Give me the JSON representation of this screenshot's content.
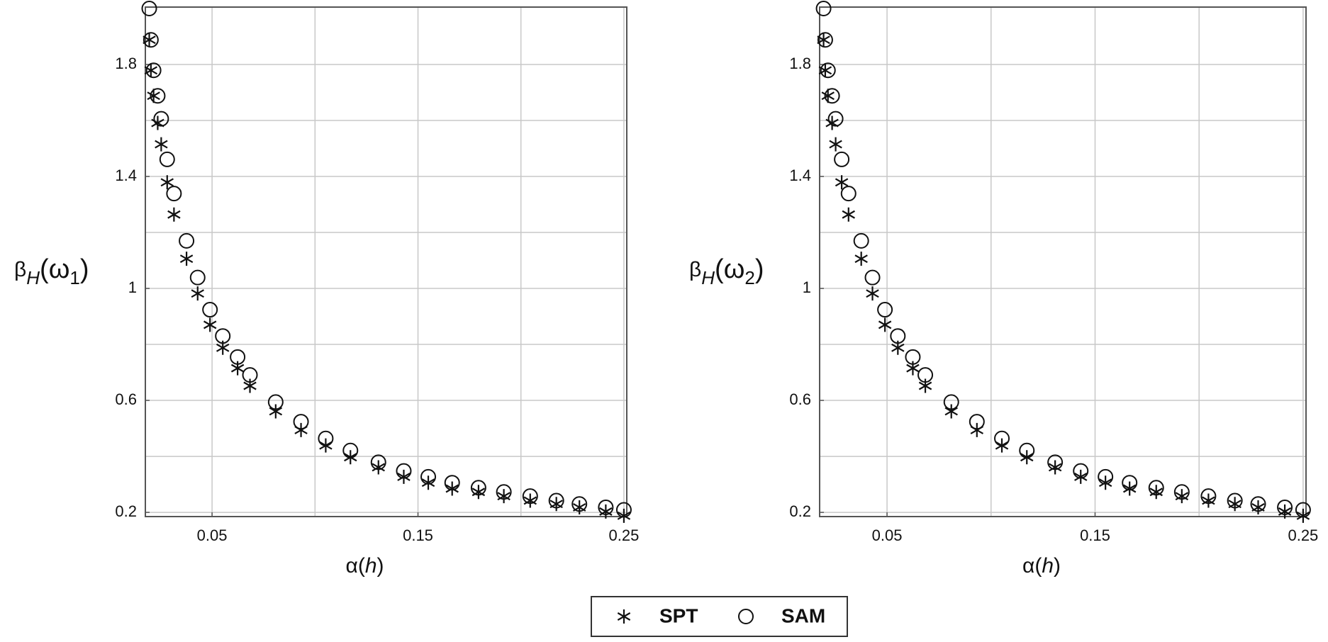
{
  "chart_data": [
    {
      "type": "scatter",
      "ylabel": [
        "β",
        "H",
        "(ω",
        "1",
        ")"
      ],
      "xlabel": [
        "α(",
        "h",
        ")"
      ],
      "x": [
        0.0195,
        0.0203,
        0.0216,
        0.0236,
        0.0253,
        0.0282,
        0.0315,
        0.0376,
        0.043,
        0.049,
        0.0552,
        0.0624,
        0.0684,
        0.0809,
        0.0932,
        0.1052,
        0.1172,
        0.1308,
        0.1431,
        0.155,
        0.1666,
        0.1794,
        0.1917,
        0.2045,
        0.2172,
        0.2284,
        0.2412,
        0.25
      ],
      "series": [
        {
          "name": "SPT",
          "marker": "star",
          "color": "#111111",
          "values": [
            1.888,
            1.779,
            1.688,
            1.591,
            1.515,
            1.379,
            1.264,
            1.106,
            0.982,
            0.87,
            0.788,
            0.715,
            0.652,
            0.561,
            0.494,
            0.439,
            0.397,
            0.361,
            0.327,
            0.306,
            0.285,
            0.273,
            0.258,
            0.242,
            0.23,
            0.218,
            0.203,
            0.188
          ]
        },
        {
          "name": "SAM",
          "marker": "circle",
          "color": "#111111",
          "values": [
            2.0,
            1.888,
            1.779,
            1.688,
            1.606,
            1.461,
            1.339,
            1.17,
            1.039,
            0.924,
            0.83,
            0.755,
            0.691,
            0.594,
            0.524,
            0.464,
            0.421,
            0.379,
            0.348,
            0.327,
            0.306,
            0.288,
            0.273,
            0.258,
            0.242,
            0.23,
            0.218,
            0.209
          ]
        }
      ],
      "xlim": [
        0.0176,
        0.2514
      ],
      "ylim": [
        0.185,
        2.005
      ],
      "xticks": [
        0.05,
        0.15,
        0.25
      ],
      "yticks": [
        0.2,
        0.6,
        1.0,
        1.4,
        1.8
      ],
      "xgrid": [
        0.05,
        0.1,
        0.15,
        0.2,
        0.25
      ],
      "ygrid": [
        0.2,
        0.4,
        0.6,
        0.8,
        1.0,
        1.2,
        1.4,
        1.6,
        1.8
      ],
      "grid": true
    },
    {
      "type": "scatter",
      "ylabel": [
        "β",
        "H",
        "(ω",
        "2",
        ")"
      ],
      "xlabel": [
        "α(",
        "h",
        ")"
      ],
      "x": [
        0.0195,
        0.0203,
        0.0216,
        0.0236,
        0.0253,
        0.0282,
        0.0315,
        0.0376,
        0.043,
        0.049,
        0.0552,
        0.0624,
        0.0684,
        0.0809,
        0.0932,
        0.1052,
        0.1172,
        0.1308,
        0.1431,
        0.155,
        0.1666,
        0.1794,
        0.1917,
        0.2045,
        0.2172,
        0.2284,
        0.2412,
        0.25
      ],
      "series": [
        {
          "name": "SPT",
          "marker": "star",
          "color": "#111111",
          "values": [
            1.888,
            1.779,
            1.688,
            1.591,
            1.515,
            1.379,
            1.264,
            1.106,
            0.982,
            0.87,
            0.788,
            0.715,
            0.652,
            0.561,
            0.494,
            0.439,
            0.397,
            0.361,
            0.327,
            0.306,
            0.285,
            0.273,
            0.258,
            0.242,
            0.23,
            0.218,
            0.203,
            0.188
          ]
        },
        {
          "name": "SAM",
          "marker": "circle",
          "color": "#111111",
          "values": [
            2.0,
            1.888,
            1.779,
            1.688,
            1.606,
            1.461,
            1.339,
            1.17,
            1.039,
            0.924,
            0.83,
            0.755,
            0.691,
            0.594,
            0.524,
            0.464,
            0.421,
            0.379,
            0.348,
            0.327,
            0.306,
            0.288,
            0.273,
            0.258,
            0.242,
            0.23,
            0.218,
            0.209
          ]
        }
      ],
      "xlim": [
        0.0176,
        0.2514
      ],
      "ylim": [
        0.185,
        2.005
      ],
      "xticks": [
        0.05,
        0.15,
        0.25
      ],
      "yticks": [
        0.2,
        0.6,
        1.0,
        1.4,
        1.8
      ],
      "xgrid": [
        0.05,
        0.1,
        0.15,
        0.2,
        0.25
      ],
      "ygrid": [
        0.2,
        0.4,
        0.6,
        0.8,
        1.0,
        1.2,
        1.4,
        1.6,
        1.8
      ],
      "grid": true
    }
  ]
}
